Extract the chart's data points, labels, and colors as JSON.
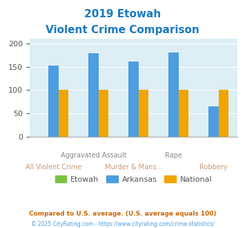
{
  "title_line1": "2019 Etowah",
  "title_line2": "Violent Crime Comparison",
  "title_color": "#1a7abf",
  "etowah_values": [
    0,
    0,
    0,
    0,
    0
  ],
  "arkansas_values": [
    153,
    179,
    161,
    181,
    65
  ],
  "national_values": [
    100,
    100,
    100,
    100,
    100
  ],
  "etowah_color": "#7bc043",
  "arkansas_color": "#4d9de0",
  "national_color": "#f0a500",
  "ylim": [
    0,
    210
  ],
  "yticks": [
    0,
    50,
    100,
    150,
    200
  ],
  "background_color": "#ddeef5",
  "legend_labels": [
    "Etowah",
    "Arkansas",
    "National"
  ],
  "top_labels": [
    "",
    "Aggravated Assault",
    "",
    "Rape",
    ""
  ],
  "bot_labels": [
    "All Violent Crime",
    "",
    "Murder & Mans...",
    "",
    "Robbery"
  ],
  "top_label_color": "#888888",
  "bot_label_color": "#cc9977",
  "footnote1": "Compared to U.S. average. (U.S. average equals 100)",
  "footnote2": "© 2025 CityRating.com - https://www.cityrating.com/crime-statistics/",
  "footnote1_color": "#cc6600",
  "footnote2_color": "#4d9de0"
}
